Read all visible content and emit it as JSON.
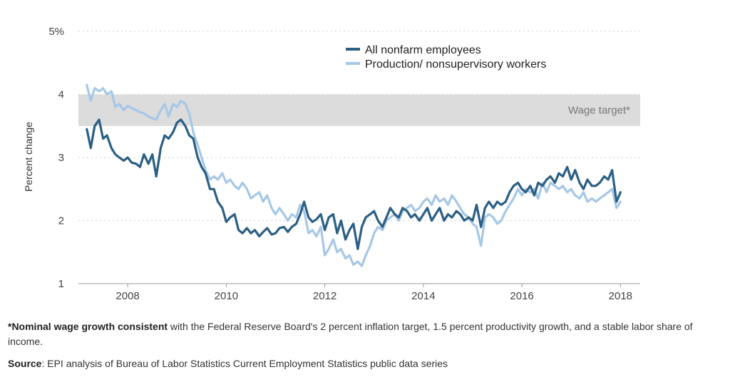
{
  "chart_data": {
    "type": "line",
    "title": "",
    "xlabel": "",
    "ylabel": "Percent change",
    "xlim": [
      2007.0,
      2018.4
    ],
    "ylim": [
      1,
      5
    ],
    "x_ticks": [
      "2008",
      "2010",
      "2012",
      "2014",
      "2016",
      "2018"
    ],
    "y_ticks": [
      "1",
      "2",
      "3",
      "4",
      "5%"
    ],
    "grid": "horizontal dotted",
    "legend_position": "top-center",
    "band": {
      "label": "Wage target*",
      "from": 3.5,
      "to": 4.0,
      "color": "#dcdcdc"
    },
    "series": [
      {
        "name": "All nonfarm employees",
        "color": "#2b5f84",
        "points": [
          [
            2007.17,
            3.45
          ],
          [
            2007.25,
            3.15
          ],
          [
            2007.33,
            3.5
          ],
          [
            2007.42,
            3.6
          ],
          [
            2007.5,
            3.3
          ],
          [
            2007.58,
            3.35
          ],
          [
            2007.67,
            3.15
          ],
          [
            2007.75,
            3.05
          ],
          [
            2007.83,
            3.0
          ],
          [
            2007.92,
            2.95
          ],
          [
            2008.0,
            3.0
          ],
          [
            2008.08,
            2.92
          ],
          [
            2008.17,
            2.9
          ],
          [
            2008.25,
            2.85
          ],
          [
            2008.33,
            3.05
          ],
          [
            2008.42,
            2.9
          ],
          [
            2008.5,
            3.05
          ],
          [
            2008.58,
            2.7
          ],
          [
            2008.67,
            3.15
          ],
          [
            2008.75,
            3.35
          ],
          [
            2008.83,
            3.3
          ],
          [
            2008.92,
            3.4
          ],
          [
            2009.0,
            3.55
          ],
          [
            2009.08,
            3.6
          ],
          [
            2009.17,
            3.5
          ],
          [
            2009.25,
            3.35
          ],
          [
            2009.33,
            3.3
          ],
          [
            2009.42,
            3.0
          ],
          [
            2009.5,
            2.85
          ],
          [
            2009.58,
            2.75
          ],
          [
            2009.67,
            2.5
          ],
          [
            2009.75,
            2.5
          ],
          [
            2009.83,
            2.3
          ],
          [
            2009.92,
            2.2
          ],
          [
            2010.0,
            1.98
          ],
          [
            2010.08,
            2.05
          ],
          [
            2010.17,
            2.1
          ],
          [
            2010.25,
            1.85
          ],
          [
            2010.33,
            1.8
          ],
          [
            2010.42,
            1.88
          ],
          [
            2010.5,
            1.8
          ],
          [
            2010.58,
            1.85
          ],
          [
            2010.67,
            1.75
          ],
          [
            2010.75,
            1.82
          ],
          [
            2010.83,
            1.88
          ],
          [
            2010.92,
            1.78
          ],
          [
            2011.0,
            1.8
          ],
          [
            2011.08,
            1.88
          ],
          [
            2011.17,
            1.9
          ],
          [
            2011.25,
            1.82
          ],
          [
            2011.33,
            1.9
          ],
          [
            2011.42,
            1.95
          ],
          [
            2011.5,
            2.1
          ],
          [
            2011.58,
            2.3
          ],
          [
            2011.67,
            2.05
          ],
          [
            2011.75,
            1.98
          ],
          [
            2011.83,
            2.02
          ],
          [
            2011.92,
            2.1
          ],
          [
            2012.0,
            1.85
          ],
          [
            2012.08,
            2.05
          ],
          [
            2012.17,
            2.1
          ],
          [
            2012.25,
            1.8
          ],
          [
            2012.33,
            2.0
          ],
          [
            2012.42,
            1.7
          ],
          [
            2012.5,
            1.85
          ],
          [
            2012.58,
            1.95
          ],
          [
            2012.67,
            1.55
          ],
          [
            2012.75,
            1.9
          ],
          [
            2012.83,
            2.05
          ],
          [
            2012.92,
            2.1
          ],
          [
            2013.0,
            2.15
          ],
          [
            2013.08,
            2.0
          ],
          [
            2013.17,
            1.9
          ],
          [
            2013.25,
            2.05
          ],
          [
            2013.33,
            2.2
          ],
          [
            2013.42,
            2.1
          ],
          [
            2013.5,
            2.05
          ],
          [
            2013.58,
            2.2
          ],
          [
            2013.67,
            2.15
          ],
          [
            2013.75,
            2.05
          ],
          [
            2013.83,
            2.1
          ],
          [
            2013.92,
            2.0
          ],
          [
            2014.0,
            2.1
          ],
          [
            2014.08,
            2.2
          ],
          [
            2014.17,
            2.0
          ],
          [
            2014.25,
            2.1
          ],
          [
            2014.33,
            2.2
          ],
          [
            2014.42,
            2.0
          ],
          [
            2014.5,
            2.1
          ],
          [
            2014.58,
            2.05
          ],
          [
            2014.67,
            2.15
          ],
          [
            2014.75,
            2.1
          ],
          [
            2014.83,
            2.0
          ],
          [
            2014.92,
            2.05
          ],
          [
            2015.0,
            2.0
          ],
          [
            2015.08,
            2.25
          ],
          [
            2015.17,
            1.9
          ],
          [
            2015.25,
            2.2
          ],
          [
            2015.33,
            2.3
          ],
          [
            2015.42,
            2.2
          ],
          [
            2015.5,
            2.3
          ],
          [
            2015.58,
            2.25
          ],
          [
            2015.67,
            2.3
          ],
          [
            2015.75,
            2.45
          ],
          [
            2015.83,
            2.55
          ],
          [
            2015.92,
            2.6
          ],
          [
            2016.0,
            2.5
          ],
          [
            2016.08,
            2.45
          ],
          [
            2016.17,
            2.55
          ],
          [
            2016.25,
            2.4
          ],
          [
            2016.33,
            2.6
          ],
          [
            2016.42,
            2.55
          ],
          [
            2016.5,
            2.65
          ],
          [
            2016.58,
            2.7
          ],
          [
            2016.67,
            2.6
          ],
          [
            2016.75,
            2.75
          ],
          [
            2016.83,
            2.7
          ],
          [
            2016.92,
            2.85
          ],
          [
            2017.0,
            2.65
          ],
          [
            2017.08,
            2.8
          ],
          [
            2017.17,
            2.6
          ],
          [
            2017.25,
            2.5
          ],
          [
            2017.33,
            2.65
          ],
          [
            2017.42,
            2.55
          ],
          [
            2017.5,
            2.55
          ],
          [
            2017.58,
            2.6
          ],
          [
            2017.67,
            2.7
          ],
          [
            2017.75,
            2.65
          ],
          [
            2017.83,
            2.8
          ],
          [
            2017.92,
            2.3
          ],
          [
            2018.0,
            2.45
          ]
        ]
      },
      {
        "name": "Production/ nonsupervisory workers",
        "color": "#a6c8e6",
        "points": [
          [
            2007.17,
            4.15
          ],
          [
            2007.25,
            3.9
          ],
          [
            2007.33,
            4.1
          ],
          [
            2007.42,
            4.05
          ],
          [
            2007.5,
            4.1
          ],
          [
            2007.58,
            4.0
          ],
          [
            2007.67,
            4.05
          ],
          [
            2007.75,
            3.8
          ],
          [
            2007.83,
            3.85
          ],
          [
            2007.92,
            3.75
          ],
          [
            2008.0,
            3.82
          ],
          [
            2008.08,
            3.78
          ],
          [
            2008.17,
            3.75
          ],
          [
            2008.25,
            3.72
          ],
          [
            2008.33,
            3.7
          ],
          [
            2008.42,
            3.65
          ],
          [
            2008.5,
            3.62
          ],
          [
            2008.58,
            3.6
          ],
          [
            2008.67,
            3.75
          ],
          [
            2008.75,
            3.85
          ],
          [
            2008.83,
            3.65
          ],
          [
            2008.92,
            3.85
          ],
          [
            2009.0,
            3.8
          ],
          [
            2009.08,
            3.9
          ],
          [
            2009.17,
            3.85
          ],
          [
            2009.25,
            3.7
          ],
          [
            2009.33,
            3.4
          ],
          [
            2009.42,
            3.2
          ],
          [
            2009.5,
            3.0
          ],
          [
            2009.58,
            2.8
          ],
          [
            2009.67,
            2.65
          ],
          [
            2009.75,
            2.7
          ],
          [
            2009.83,
            2.65
          ],
          [
            2009.92,
            2.75
          ],
          [
            2010.0,
            2.6
          ],
          [
            2010.08,
            2.65
          ],
          [
            2010.17,
            2.55
          ],
          [
            2010.25,
            2.5
          ],
          [
            2010.33,
            2.6
          ],
          [
            2010.42,
            2.5
          ],
          [
            2010.5,
            2.35
          ],
          [
            2010.58,
            2.4
          ],
          [
            2010.67,
            2.45
          ],
          [
            2010.75,
            2.3
          ],
          [
            2010.83,
            2.4
          ],
          [
            2010.92,
            2.2
          ],
          [
            2011.0,
            2.1
          ],
          [
            2011.08,
            2.2
          ],
          [
            2011.17,
            2.1
          ],
          [
            2011.25,
            2.0
          ],
          [
            2011.33,
            2.1
          ],
          [
            2011.42,
            2.05
          ],
          [
            2011.5,
            2.25
          ],
          [
            2011.58,
            2.15
          ],
          [
            2011.67,
            1.8
          ],
          [
            2011.75,
            1.85
          ],
          [
            2011.83,
            1.75
          ],
          [
            2011.92,
            1.9
          ],
          [
            2012.0,
            1.45
          ],
          [
            2012.08,
            1.55
          ],
          [
            2012.17,
            1.7
          ],
          [
            2012.25,
            1.5
          ],
          [
            2012.33,
            1.55
          ],
          [
            2012.42,
            1.4
          ],
          [
            2012.5,
            1.45
          ],
          [
            2012.58,
            1.3
          ],
          [
            2012.67,
            1.35
          ],
          [
            2012.75,
            1.28
          ],
          [
            2012.83,
            1.45
          ],
          [
            2012.92,
            1.6
          ],
          [
            2013.0,
            1.8
          ],
          [
            2013.08,
            1.9
          ],
          [
            2013.17,
            1.85
          ],
          [
            2013.25,
            2.0
          ],
          [
            2013.33,
            2.05
          ],
          [
            2013.42,
            2.1
          ],
          [
            2013.5,
            2.0
          ],
          [
            2013.58,
            2.15
          ],
          [
            2013.67,
            2.2
          ],
          [
            2013.75,
            2.25
          ],
          [
            2013.83,
            2.15
          ],
          [
            2013.92,
            2.2
          ],
          [
            2014.0,
            2.3
          ],
          [
            2014.08,
            2.35
          ],
          [
            2014.17,
            2.25
          ],
          [
            2014.25,
            2.4
          ],
          [
            2014.33,
            2.3
          ],
          [
            2014.42,
            2.35
          ],
          [
            2014.5,
            2.25
          ],
          [
            2014.58,
            2.4
          ],
          [
            2014.67,
            2.3
          ],
          [
            2014.75,
            2.2
          ],
          [
            2014.83,
            2.1
          ],
          [
            2014.92,
            2.05
          ],
          [
            2015.0,
            1.95
          ],
          [
            2015.08,
            1.9
          ],
          [
            2015.17,
            1.6
          ],
          [
            2015.25,
            2.05
          ],
          [
            2015.33,
            2.1
          ],
          [
            2015.42,
            2.05
          ],
          [
            2015.5,
            1.95
          ],
          [
            2015.58,
            2.0
          ],
          [
            2015.67,
            2.15
          ],
          [
            2015.75,
            2.25
          ],
          [
            2015.83,
            2.35
          ],
          [
            2015.92,
            2.5
          ],
          [
            2016.0,
            2.4
          ],
          [
            2016.08,
            2.5
          ],
          [
            2016.17,
            2.45
          ],
          [
            2016.25,
            2.5
          ],
          [
            2016.33,
            2.35
          ],
          [
            2016.42,
            2.6
          ],
          [
            2016.5,
            2.45
          ],
          [
            2016.58,
            2.6
          ],
          [
            2016.67,
            2.55
          ],
          [
            2016.75,
            2.5
          ],
          [
            2016.83,
            2.55
          ],
          [
            2016.92,
            2.45
          ],
          [
            2017.0,
            2.5
          ],
          [
            2017.08,
            2.4
          ],
          [
            2017.17,
            2.35
          ],
          [
            2017.25,
            2.45
          ],
          [
            2017.33,
            2.3
          ],
          [
            2017.42,
            2.35
          ],
          [
            2017.5,
            2.3
          ],
          [
            2017.58,
            2.35
          ],
          [
            2017.67,
            2.4
          ],
          [
            2017.75,
            2.45
          ],
          [
            2017.83,
            2.5
          ],
          [
            2017.92,
            2.2
          ],
          [
            2018.0,
            2.3
          ]
        ]
      }
    ]
  },
  "notes": {
    "footnote_bold": "*Nominal wage growth consistent",
    "footnote_text": " with the Federal Reserve Board's 2 percent inflation target, 1.5 percent productivity growth, and a stable labor share of income.",
    "source_bold": "Source",
    "source_text": ": EPI analysis of Bureau of Labor Statistics Current Employment Statistics public data series"
  }
}
